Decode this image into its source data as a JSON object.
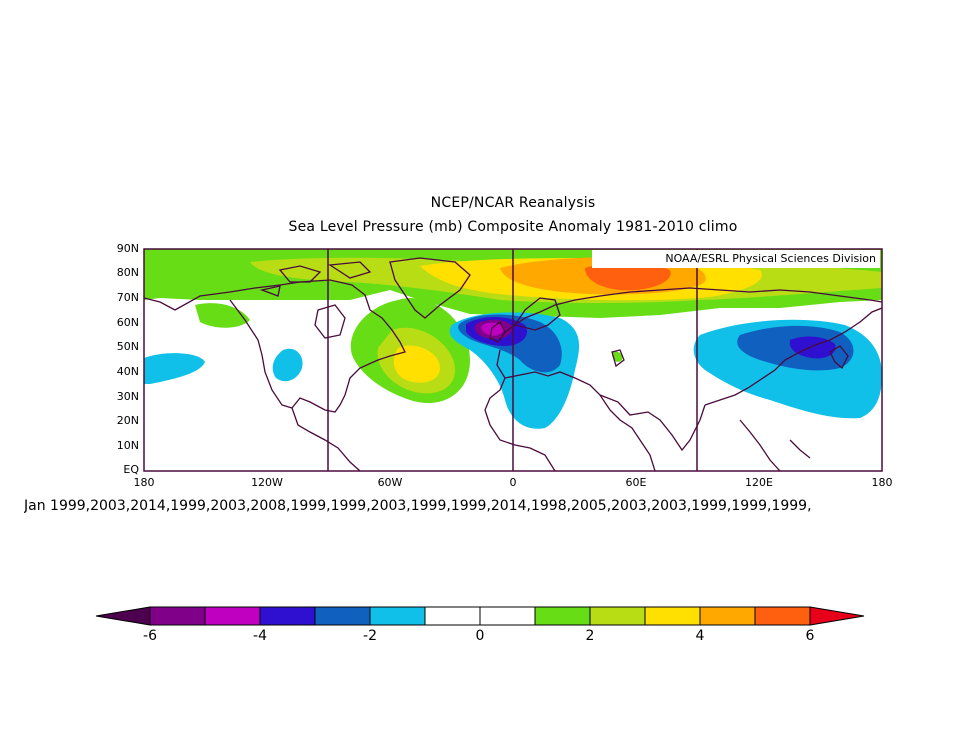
{
  "title_line1": "NCEP/NCAR Reanalysis",
  "title_line2": "Sea Level Pressure (mb) Composite Anomaly 1981-2010 climo",
  "credit": "NOAA/ESRL Physical Sciences Division",
  "composite_years": "Jan 1999,2003,2014,1999,2003,2008,1999,1999,2003,1999,1999,2014,1998,2005,2003,2003,1999,1999,1999,",
  "map": {
    "lon_range": [
      -180,
      180
    ],
    "lat_range": [
      0,
      90
    ],
    "lat_ticks": [
      "90N",
      "80N",
      "70N",
      "60N",
      "50N",
      "40N",
      "30N",
      "20N",
      "10N",
      "EQ"
    ],
    "lon_ticks": [
      "180",
      "120W",
      "60W",
      "0",
      "60E",
      "120E",
      "180"
    ],
    "vertical_lines_lon": [
      -90,
      0,
      90
    ]
  },
  "colorbar": {
    "ticks": [
      "-6",
      "-4",
      "-2",
      "0",
      "2",
      "4",
      "6"
    ],
    "left_arrow_color": "#4d004d",
    "right_arrow_color": "#e8001a",
    "colors": [
      "#80008a",
      "#c000c0",
      "#3010d0",
      "#1060c0",
      "#10c0e8",
      "#ffffff",
      "#ffffff",
      "#66dd14",
      "#b8dd14",
      "#ffe000",
      "#ffa800",
      "#ff6010"
    ]
  },
  "palette": {
    "map_outline": "#4a0a3e",
    "green": "#66dd14",
    "yellow_green": "#b8dd14",
    "yellow": "#ffe000",
    "orange": "#ffa800",
    "red_orange": "#ff6010",
    "light_blue": "#10c0e8",
    "mid_blue": "#1060c0",
    "dark_blue": "#3010d0",
    "purple": "#80008a",
    "magenta": "#c000c0"
  }
}
